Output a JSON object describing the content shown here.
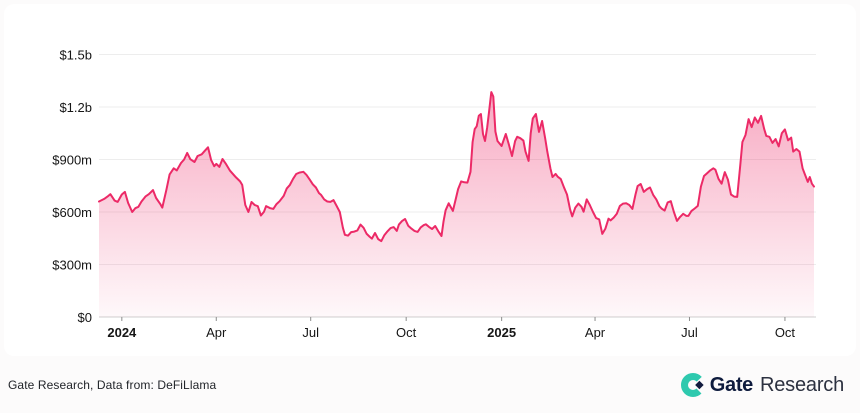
{
  "footer": {
    "source_text": "Gate Research, Data from: DeFiLlama",
    "brand_primary": "Gate",
    "brand_secondary": "Research"
  },
  "colors": {
    "line": "#EC2A67",
    "fill_top": "rgba(236,42,103,0.40)",
    "fill_bottom": "rgba(236,42,103,0.03)",
    "grid": "#EDEDED",
    "axis_line": "#CFCFCF",
    "tick_mark": "#8C8C8C",
    "tick_label": "#161616",
    "brand_teal": "#2EC9AE",
    "brand_navy": "#121B3E"
  },
  "chart_data": {
    "type": "area",
    "title": "",
    "xlabel": "",
    "ylabel": "",
    "unit": "USD (m = millions, b = billions)",
    "grid": "horizontal",
    "legend": null,
    "ylim": [
      0,
      1500
    ],
    "x_range": [
      "2023-12-10",
      "2025-10-29"
    ],
    "y_ticks": [
      {
        "value": 0,
        "label": "$0"
      },
      {
        "value": 300,
        "label": "$300m"
      },
      {
        "value": 600,
        "label": "$600m"
      },
      {
        "value": 900,
        "label": "$900m"
      },
      {
        "value": 1200,
        "label": "$1.2b"
      },
      {
        "value": 1500,
        "label": "$1.5b"
      }
    ],
    "x_ticks": [
      {
        "date": "2024-01-01",
        "label": "2024",
        "bold": true
      },
      {
        "date": "2024-04-01",
        "label": "Apr",
        "bold": false
      },
      {
        "date": "2024-07-01",
        "label": "Jul",
        "bold": false
      },
      {
        "date": "2024-10-01",
        "label": "Oct",
        "bold": false
      },
      {
        "date": "2025-01-01",
        "label": "2025",
        "bold": true
      },
      {
        "date": "2025-04-01",
        "label": "Apr",
        "bold": false
      },
      {
        "date": "2025-07-01",
        "label": "Jul",
        "bold": false
      },
      {
        "date": "2025-10-01",
        "label": "Oct",
        "bold": false
      }
    ],
    "series": [
      {
        "name": "value_usd_millions",
        "color": "#EC2A67",
        "points": [
          [
            "2023-12-10",
            660
          ],
          [
            "2023-12-15",
            675
          ],
          [
            "2023-12-19",
            692
          ],
          [
            "2023-12-21",
            702
          ],
          [
            "2023-12-25",
            665
          ],
          [
            "2023-12-28",
            658
          ],
          [
            "2024-01-01",
            700
          ],
          [
            "2024-01-04",
            715
          ],
          [
            "2024-01-07",
            652
          ],
          [
            "2024-01-11",
            600
          ],
          [
            "2024-01-14",
            622
          ],
          [
            "2024-01-17",
            630
          ],
          [
            "2024-01-20",
            660
          ],
          [
            "2024-01-24",
            690
          ],
          [
            "2024-01-27",
            702
          ],
          [
            "2024-01-31",
            725
          ],
          [
            "2024-02-03",
            680
          ],
          [
            "2024-02-07",
            646
          ],
          [
            "2024-02-09",
            625
          ],
          [
            "2024-02-13",
            730
          ],
          [
            "2024-02-16",
            815
          ],
          [
            "2024-02-20",
            850
          ],
          [
            "2024-02-23",
            838
          ],
          [
            "2024-02-27",
            880
          ],
          [
            "2024-03-01",
            900
          ],
          [
            "2024-03-04",
            938
          ],
          [
            "2024-03-07",
            902
          ],
          [
            "2024-03-11",
            886
          ],
          [
            "2024-03-14",
            920
          ],
          [
            "2024-03-18",
            930
          ],
          [
            "2024-03-21",
            950
          ],
          [
            "2024-03-24",
            970
          ],
          [
            "2024-03-27",
            898
          ],
          [
            "2024-03-30",
            862
          ],
          [
            "2024-04-01",
            875
          ],
          [
            "2024-04-04",
            858
          ],
          [
            "2024-04-07",
            903
          ],
          [
            "2024-04-10",
            878
          ],
          [
            "2024-04-14",
            838
          ],
          [
            "2024-04-17",
            818
          ],
          [
            "2024-04-20",
            798
          ],
          [
            "2024-04-24",
            775
          ],
          [
            "2024-04-26",
            755
          ],
          [
            "2024-04-29",
            640
          ],
          [
            "2024-05-02",
            600
          ],
          [
            "2024-05-05",
            657
          ],
          [
            "2024-05-08",
            640
          ],
          [
            "2024-05-11",
            633
          ],
          [
            "2024-05-14",
            580
          ],
          [
            "2024-05-17",
            602
          ],
          [
            "2024-05-19",
            634
          ],
          [
            "2024-05-23",
            622
          ],
          [
            "2024-05-26",
            618
          ],
          [
            "2024-05-29",
            645
          ],
          [
            "2024-06-01",
            662
          ],
          [
            "2024-06-05",
            692
          ],
          [
            "2024-06-08",
            735
          ],
          [
            "2024-06-11",
            755
          ],
          [
            "2024-06-14",
            790
          ],
          [
            "2024-06-17",
            817
          ],
          [
            "2024-06-20",
            825
          ],
          [
            "2024-06-24",
            830
          ],
          [
            "2024-06-27",
            812
          ],
          [
            "2024-06-30",
            785
          ],
          [
            "2024-07-03",
            758
          ],
          [
            "2024-07-06",
            740
          ],
          [
            "2024-07-09",
            708
          ],
          [
            "2024-07-11",
            698
          ],
          [
            "2024-07-14",
            672
          ],
          [
            "2024-07-17",
            660
          ],
          [
            "2024-07-20",
            658
          ],
          [
            "2024-07-23",
            668
          ],
          [
            "2024-07-26",
            635
          ],
          [
            "2024-07-29",
            600
          ],
          [
            "2024-08-01",
            510
          ],
          [
            "2024-08-03",
            470
          ],
          [
            "2024-08-06",
            465
          ],
          [
            "2024-08-09",
            485
          ],
          [
            "2024-08-12",
            488
          ],
          [
            "2024-08-15",
            495
          ],
          [
            "2024-08-18",
            528
          ],
          [
            "2024-08-21",
            510
          ],
          [
            "2024-08-24",
            475
          ],
          [
            "2024-08-27",
            458
          ],
          [
            "2024-08-29",
            448
          ],
          [
            "2024-09-01",
            480
          ],
          [
            "2024-09-04",
            445
          ],
          [
            "2024-09-07",
            434
          ],
          [
            "2024-09-10",
            468
          ],
          [
            "2024-09-13",
            490
          ],
          [
            "2024-09-16",
            508
          ],
          [
            "2024-09-19",
            514
          ],
          [
            "2024-09-22",
            492
          ],
          [
            "2024-09-24",
            528
          ],
          [
            "2024-09-27",
            548
          ],
          [
            "2024-09-30",
            560
          ],
          [
            "2024-10-03",
            522
          ],
          [
            "2024-10-06",
            505
          ],
          [
            "2024-10-09",
            492
          ],
          [
            "2024-10-12",
            486
          ],
          [
            "2024-10-15",
            512
          ],
          [
            "2024-10-18",
            525
          ],
          [
            "2024-10-20",
            530
          ],
          [
            "2024-10-23",
            515
          ],
          [
            "2024-10-26",
            503
          ],
          [
            "2024-10-29",
            520
          ],
          [
            "2024-11-01",
            490
          ],
          [
            "2024-11-04",
            463
          ],
          [
            "2024-11-06",
            545
          ],
          [
            "2024-11-08",
            610
          ],
          [
            "2024-11-11",
            650
          ],
          [
            "2024-11-13",
            628
          ],
          [
            "2024-11-15",
            606
          ],
          [
            "2024-11-18",
            680
          ],
          [
            "2024-11-20",
            731
          ],
          [
            "2024-11-23",
            775
          ],
          [
            "2024-11-26",
            770
          ],
          [
            "2024-11-29",
            768
          ],
          [
            "2024-12-02",
            830
          ],
          [
            "2024-12-04",
            1000
          ],
          [
            "2024-12-06",
            1074
          ],
          [
            "2024-12-08",
            1090
          ],
          [
            "2024-12-10",
            1150
          ],
          [
            "2024-12-12",
            1160
          ],
          [
            "2024-12-14",
            1046
          ],
          [
            "2024-12-16",
            1006
          ],
          [
            "2024-12-18",
            1080
          ],
          [
            "2024-12-20",
            1180
          ],
          [
            "2024-12-22",
            1285
          ],
          [
            "2024-12-24",
            1260
          ],
          [
            "2024-12-26",
            1060
          ],
          [
            "2024-12-28",
            1006
          ],
          [
            "2025-01-01",
            977
          ],
          [
            "2025-01-03",
            1012
          ],
          [
            "2025-01-05",
            1046
          ],
          [
            "2025-01-08",
            985
          ],
          [
            "2025-01-11",
            920
          ],
          [
            "2025-01-14",
            1005
          ],
          [
            "2025-01-16",
            1030
          ],
          [
            "2025-01-19",
            1022
          ],
          [
            "2025-01-22",
            1008
          ],
          [
            "2025-01-24",
            945
          ],
          [
            "2025-01-27",
            892
          ],
          [
            "2025-01-29",
            1050
          ],
          [
            "2025-01-31",
            1135
          ],
          [
            "2025-02-03",
            1160
          ],
          [
            "2025-02-06",
            1058
          ],
          [
            "2025-02-09",
            1120
          ],
          [
            "2025-02-12",
            1020
          ],
          [
            "2025-02-14",
            945
          ],
          [
            "2025-02-17",
            850
          ],
          [
            "2025-02-19",
            800
          ],
          [
            "2025-02-22",
            818
          ],
          [
            "2025-02-24",
            802
          ],
          [
            "2025-02-27",
            788
          ],
          [
            "2025-03-02",
            742
          ],
          [
            "2025-03-05",
            700
          ],
          [
            "2025-03-08",
            615
          ],
          [
            "2025-03-10",
            575
          ],
          [
            "2025-03-13",
            625
          ],
          [
            "2025-03-16",
            648
          ],
          [
            "2025-03-19",
            630
          ],
          [
            "2025-03-21",
            602
          ],
          [
            "2025-03-24",
            672
          ],
          [
            "2025-03-27",
            640
          ],
          [
            "2025-03-30",
            600
          ],
          [
            "2025-04-02",
            565
          ],
          [
            "2025-04-05",
            558
          ],
          [
            "2025-04-08",
            475
          ],
          [
            "2025-04-11",
            505
          ],
          [
            "2025-04-14",
            562
          ],
          [
            "2025-04-16",
            552
          ],
          [
            "2025-04-19",
            568
          ],
          [
            "2025-04-22",
            590
          ],
          [
            "2025-04-25",
            635
          ],
          [
            "2025-04-28",
            648
          ],
          [
            "2025-05-01",
            650
          ],
          [
            "2025-05-04",
            640
          ],
          [
            "2025-05-07",
            618
          ],
          [
            "2025-05-10",
            700
          ],
          [
            "2025-05-12",
            748
          ],
          [
            "2025-05-15",
            760
          ],
          [
            "2025-05-18",
            715
          ],
          [
            "2025-05-21",
            730
          ],
          [
            "2025-05-24",
            740
          ],
          [
            "2025-05-27",
            698
          ],
          [
            "2025-05-30",
            672
          ],
          [
            "2025-06-02",
            634
          ],
          [
            "2025-06-04",
            620
          ],
          [
            "2025-06-07",
            608
          ],
          [
            "2025-06-10",
            655
          ],
          [
            "2025-06-13",
            662
          ],
          [
            "2025-06-16",
            600
          ],
          [
            "2025-06-19",
            549
          ],
          [
            "2025-06-22",
            572
          ],
          [
            "2025-06-25",
            590
          ],
          [
            "2025-06-28",
            578
          ],
          [
            "2025-06-30",
            578
          ],
          [
            "2025-07-03",
            606
          ],
          [
            "2025-07-06",
            620
          ],
          [
            "2025-07-09",
            635
          ],
          [
            "2025-07-12",
            745
          ],
          [
            "2025-07-15",
            806
          ],
          [
            "2025-07-18",
            822
          ],
          [
            "2025-07-21",
            838
          ],
          [
            "2025-07-24",
            850
          ],
          [
            "2025-07-26",
            842
          ],
          [
            "2025-07-29",
            790
          ],
          [
            "2025-08-01",
            762
          ],
          [
            "2025-08-04",
            828
          ],
          [
            "2025-08-07",
            785
          ],
          [
            "2025-08-10",
            700
          ],
          [
            "2025-08-13",
            688
          ],
          [
            "2025-08-16",
            686
          ],
          [
            "2025-08-19",
            870
          ],
          [
            "2025-08-21",
            1000
          ],
          [
            "2025-08-24",
            1040
          ],
          [
            "2025-08-27",
            1131
          ],
          [
            "2025-08-30",
            1085
          ],
          [
            "2025-09-02",
            1140
          ],
          [
            "2025-09-05",
            1110
          ],
          [
            "2025-09-08",
            1149
          ],
          [
            "2025-09-11",
            1074
          ],
          [
            "2025-09-13",
            1035
          ],
          [
            "2025-09-16",
            1030
          ],
          [
            "2025-09-19",
            995
          ],
          [
            "2025-09-22",
            1017
          ],
          [
            "2025-09-25",
            975
          ],
          [
            "2025-09-28",
            1050
          ],
          [
            "2025-10-01",
            1072
          ],
          [
            "2025-10-04",
            1010
          ],
          [
            "2025-10-07",
            1025
          ],
          [
            "2025-10-09",
            945
          ],
          [
            "2025-10-12",
            960
          ],
          [
            "2025-10-15",
            945
          ],
          [
            "2025-10-18",
            850
          ],
          [
            "2025-10-20",
            818
          ],
          [
            "2025-10-23",
            772
          ],
          [
            "2025-10-25",
            800
          ],
          [
            "2025-10-27",
            762
          ],
          [
            "2025-10-29",
            745
          ]
        ]
      }
    ]
  }
}
